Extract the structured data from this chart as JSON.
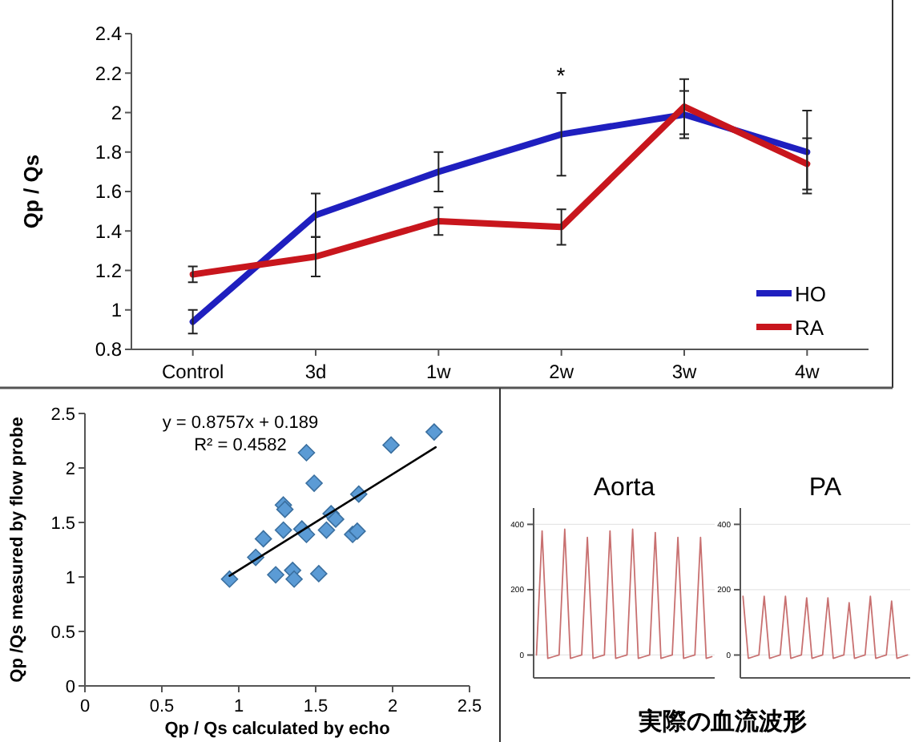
{
  "chart_data": [
    {
      "type": "line",
      "ylabel": "Qp / Qs",
      "categories": [
        "Control",
        "3d",
        "1w",
        "2w",
        "3w",
        "4w"
      ],
      "ylim": [
        0.8,
        2.4
      ],
      "yticks": [
        0.8,
        1,
        1.2,
        1.4,
        1.6,
        1.8,
        2,
        2.2,
        2.4
      ],
      "legend": "bottom right",
      "annotations": [
        "*"
      ],
      "series": [
        {
          "name": "HO",
          "color": "#1f1fbf",
          "values": [
            0.94,
            1.48,
            1.7,
            1.89,
            1.99,
            1.8
          ],
          "errors": [
            0.06,
            0.11,
            0.1,
            0.21,
            0.12,
            0.21
          ]
        },
        {
          "name": "RA",
          "color": "#c8161d",
          "values": [
            1.18,
            1.27,
            1.45,
            1.42,
            2.03,
            1.74
          ],
          "errors": [
            0.04,
            0.1,
            0.07,
            0.09,
            0.14,
            0.13
          ]
        }
      ]
    },
    {
      "type": "scatter",
      "xlabel": "Qp / Qs calculated by echo",
      "ylabel": "Qp /Qs measured by flow probe",
      "xlim": [
        0,
        2.5
      ],
      "ylim": [
        0,
        2.5
      ],
      "xticks": [
        0,
        0.5,
        1,
        1.5,
        2,
        2.5
      ],
      "yticks": [
        0,
        0.5,
        1,
        1.5,
        2,
        2.5
      ],
      "marker": "diamond",
      "annotations": [
        "y = 0.8757x + 0.189",
        "R² = 0.4582"
      ],
      "series": [
        {
          "color": "#5b9bd5",
          "x": [
            0.94,
            1.11,
            1.16,
            1.24,
            1.29,
            1.29,
            1.3,
            1.35,
            1.36,
            1.41,
            1.44,
            1.44,
            1.49,
            1.52,
            1.57,
            1.6,
            1.63,
            1.74,
            1.77,
            1.78,
            1.99,
            2.27
          ],
          "values": [
            0.98,
            1.18,
            1.35,
            1.02,
            1.43,
            1.66,
            1.62,
            1.06,
            0.98,
            1.44,
            2.14,
            1.39,
            1.86,
            1.03,
            1.43,
            1.58,
            1.53,
            1.39,
            1.42,
            1.76,
            2.21,
            2.33
          ]
        },
        {
          "type": "line",
          "marker": "none",
          "color": "#000000",
          "x": [
            0.94,
            2.28
          ],
          "values": [
            1.01,
            2.19
          ]
        }
      ]
    },
    {
      "type": "line",
      "title": "Aorta",
      "categories": [
        null,
        null,
        null,
        null,
        null,
        null,
        null,
        null,
        null,
        null,
        null,
        null,
        null,
        null,
        null,
        null,
        null,
        null,
        null,
        null,
        null,
        null,
        null,
        null,
        null,
        null,
        null,
        null,
        null,
        null,
        null,
        null
      ],
      "ylim": [
        -70,
        450
      ],
      "yticks": [
        0,
        200,
        400
      ],
      "grid": "y",
      "tick_labels": "y",
      "annotations": [
        "実際の血流波形"
      ],
      "series": [
        {
          "color": "#c87070",
          "values": [
            0,
            380,
            -10,
            -5,
            0,
            385,
            -10,
            -5,
            0,
            360,
            -10,
            -5,
            0,
            380,
            -10,
            -5,
            0,
            385,
            -10,
            -5,
            0,
            375,
            -10,
            -5,
            0,
            360,
            -10,
            -5,
            0,
            360,
            -10,
            -5
          ]
        }
      ]
    },
    {
      "type": "line",
      "title": "PA",
      "categories": [
        null,
        null,
        null,
        null,
        null,
        null,
        null,
        null,
        null,
        null,
        null,
        null,
        null,
        null,
        null,
        null,
        null,
        null,
        null,
        null,
        null,
        null,
        null,
        null,
        null,
        null,
        null,
        null,
        null,
        null,
        null,
        null
      ],
      "ylim": [
        -70,
        450
      ],
      "yticks": [
        0,
        200,
        400
      ],
      "grid": "y",
      "tick_labels": "y",
      "series": [
        {
          "color": "#c87070",
          "values": [
            180,
            -10,
            -5,
            0,
            180,
            -10,
            -5,
            0,
            180,
            -10,
            -5,
            0,
            175,
            -10,
            -5,
            0,
            175,
            -10,
            -5,
            0,
            160,
            -10,
            -5,
            0,
            180,
            -10,
            -5,
            0,
            165,
            -10,
            -5,
            0
          ]
        }
      ]
    }
  ]
}
